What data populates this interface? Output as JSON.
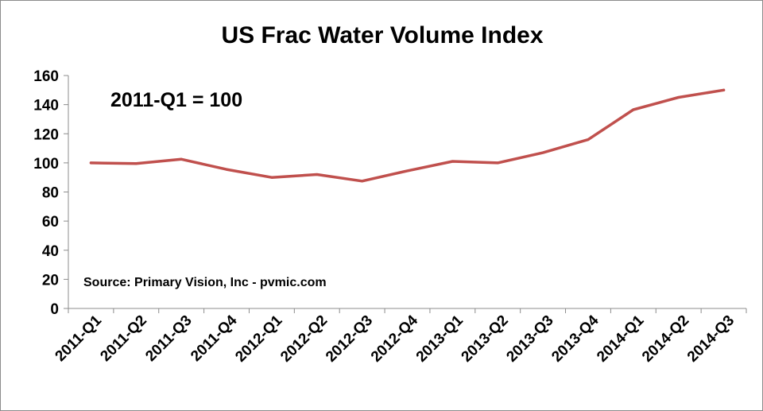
{
  "chart_data": {
    "type": "line",
    "title": "US Frac Water Volume Index",
    "annotation": "2011-Q1 = 100",
    "source": "Source: Primary Vision, Inc - pvmic.com",
    "categories": [
      "2011-Q1",
      "2011-Q2",
      "2011-Q3",
      "2011-Q4",
      "2012-Q1",
      "2012-Q2",
      "2012-Q3",
      "2012-Q4",
      "2013-Q1",
      "2013-Q2",
      "2013-Q3",
      "2013-Q4",
      "2014-Q1",
      "2014-Q2",
      "2014-Q3"
    ],
    "series": [
      {
        "values": [
          100,
          99.5,
          102.5,
          95.5,
          90,
          92,
          87.5,
          94.5,
          101,
          100,
          107,
          116,
          136.5,
          145,
          150
        ],
        "color": "#c0504d"
      }
    ],
    "yticks": [
      "0",
      "20",
      "40",
      "60",
      "80",
      "100",
      "120",
      "140",
      "160"
    ],
    "ylim": [
      0,
      160
    ],
    "xlabel": "",
    "ylabel": "",
    "grid": false,
    "legend": "none"
  }
}
